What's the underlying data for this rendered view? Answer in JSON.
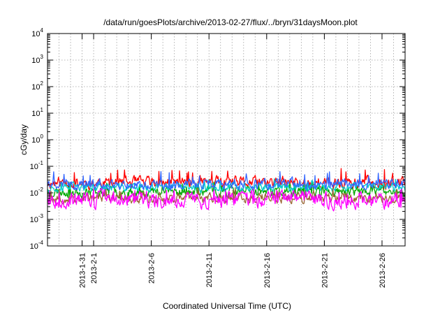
{
  "chart_data": {
    "type": "line",
    "title": "/data/run/goesPlots/archive/2013-02-27/flux/../bryn/31daysMoon.plot",
    "xlabel": "Coordinated Universal Time (UTC)",
    "ylabel": "cGy/day",
    "yscale": "log",
    "ylim": [
      0.0001,
      10000
    ],
    "xlim": [
      "2013-01-28",
      "2013-02-28"
    ],
    "grid": true,
    "y_ticks": [
      {
        "base": "10",
        "exp": "-4",
        "value": 0.0001
      },
      {
        "base": "10",
        "exp": "-3",
        "value": 0.001
      },
      {
        "base": "10",
        "exp": "-2",
        "value": 0.01
      },
      {
        "base": "10",
        "exp": "-1",
        "value": 0.1
      },
      {
        "base": "10",
        "exp": "0",
        "value": 1
      },
      {
        "base": "10",
        "exp": "1",
        "value": 10
      },
      {
        "base": "10",
        "exp": "2",
        "value": 100
      },
      {
        "base": "10",
        "exp": "3",
        "value": 1000
      },
      {
        "base": "10",
        "exp": "4",
        "value": 10000
      }
    ],
    "x_ticks": [
      {
        "label": "2013-1-31",
        "date": "2013-01-31"
      },
      {
        "label": "2013-2-1",
        "date": "2013-02-01"
      },
      {
        "label": "2013-2-6",
        "date": "2013-02-06"
      },
      {
        "label": "2013-2-11",
        "date": "2013-02-11"
      },
      {
        "label": "2013-2-16",
        "date": "2013-02-16"
      },
      {
        "label": "2013-2-21",
        "date": "2013-02-21"
      },
      {
        "label": "2013-2-26",
        "date": "2013-02-26"
      }
    ],
    "series": [
      {
        "color": "#ff0000",
        "base": 0.024,
        "amp": 0.35,
        "spike": 0.07,
        "seed": 11
      },
      {
        "color": "#00aa00",
        "base": 0.011,
        "amp": 0.3,
        "spike": 0.022,
        "seed": 23
      },
      {
        "color": "#00cccc",
        "base": 0.016,
        "amp": 0.25,
        "spike": 0.03,
        "seed": 37
      },
      {
        "color": "#3366ff",
        "base": 0.021,
        "amp": 0.3,
        "spike": 0.055,
        "seed": 41
      },
      {
        "color": "#996633",
        "base": 0.0065,
        "amp": 0.3,
        "spike": 0.013,
        "seed": 53
      },
      {
        "color": "#ff00ff",
        "base": 0.0055,
        "amp": 0.45,
        "spike": 0.012,
        "seed": 67
      }
    ]
  }
}
